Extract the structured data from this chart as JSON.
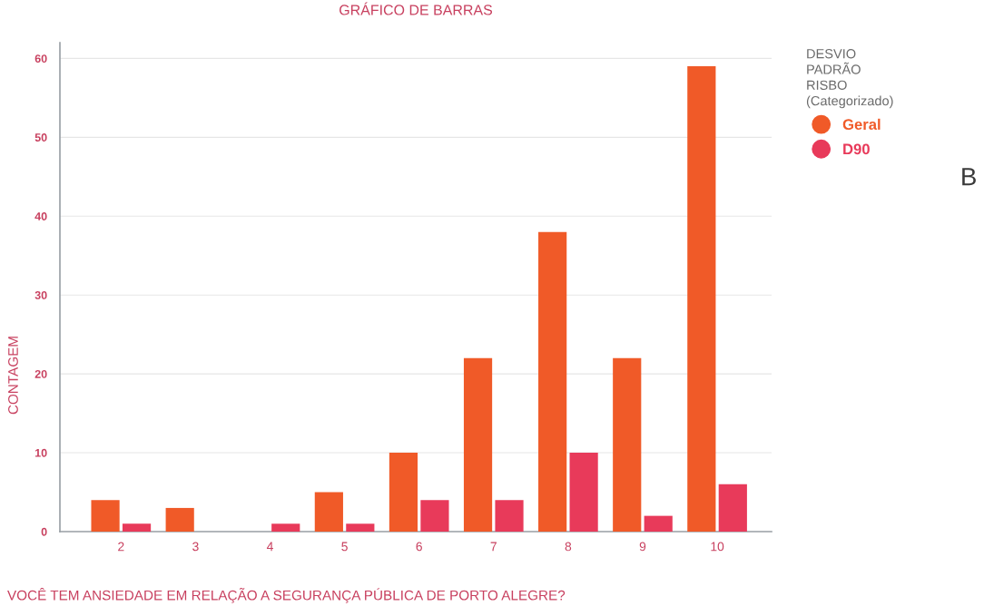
{
  "chart_data": {
    "type": "bar",
    "title": "GRÁFICO DE BARRAS",
    "xlabel": "VOCÊ TEM ANSIEDADE EM RELAÇÃO A SEGURANÇA PÚBLICA DE PORTO ALEGRE?",
    "ylabel": "CONTAGEM",
    "legend_title": "DESVIO\nPADRÃO\nRISBO\n(Categorizado)",
    "categories": [
      "2",
      "3",
      "4",
      "5",
      "6",
      "7",
      "8",
      "9",
      "10"
    ],
    "series": [
      {
        "name": "Geral",
        "color": "#f05a28",
        "values": [
          4,
          3,
          0,
          5,
          10,
          22,
          38,
          22,
          59
        ]
      },
      {
        "name": "D90",
        "color": "#e83a5a",
        "values": [
          1,
          0,
          1,
          1,
          4,
          4,
          10,
          2,
          6
        ]
      }
    ],
    "ylim": [
      0,
      62
    ],
    "yticks": [
      0,
      10,
      20,
      30,
      40,
      50,
      60
    ],
    "grid": "y",
    "legend": "top right",
    "annotations": [
      "B"
    ]
  }
}
